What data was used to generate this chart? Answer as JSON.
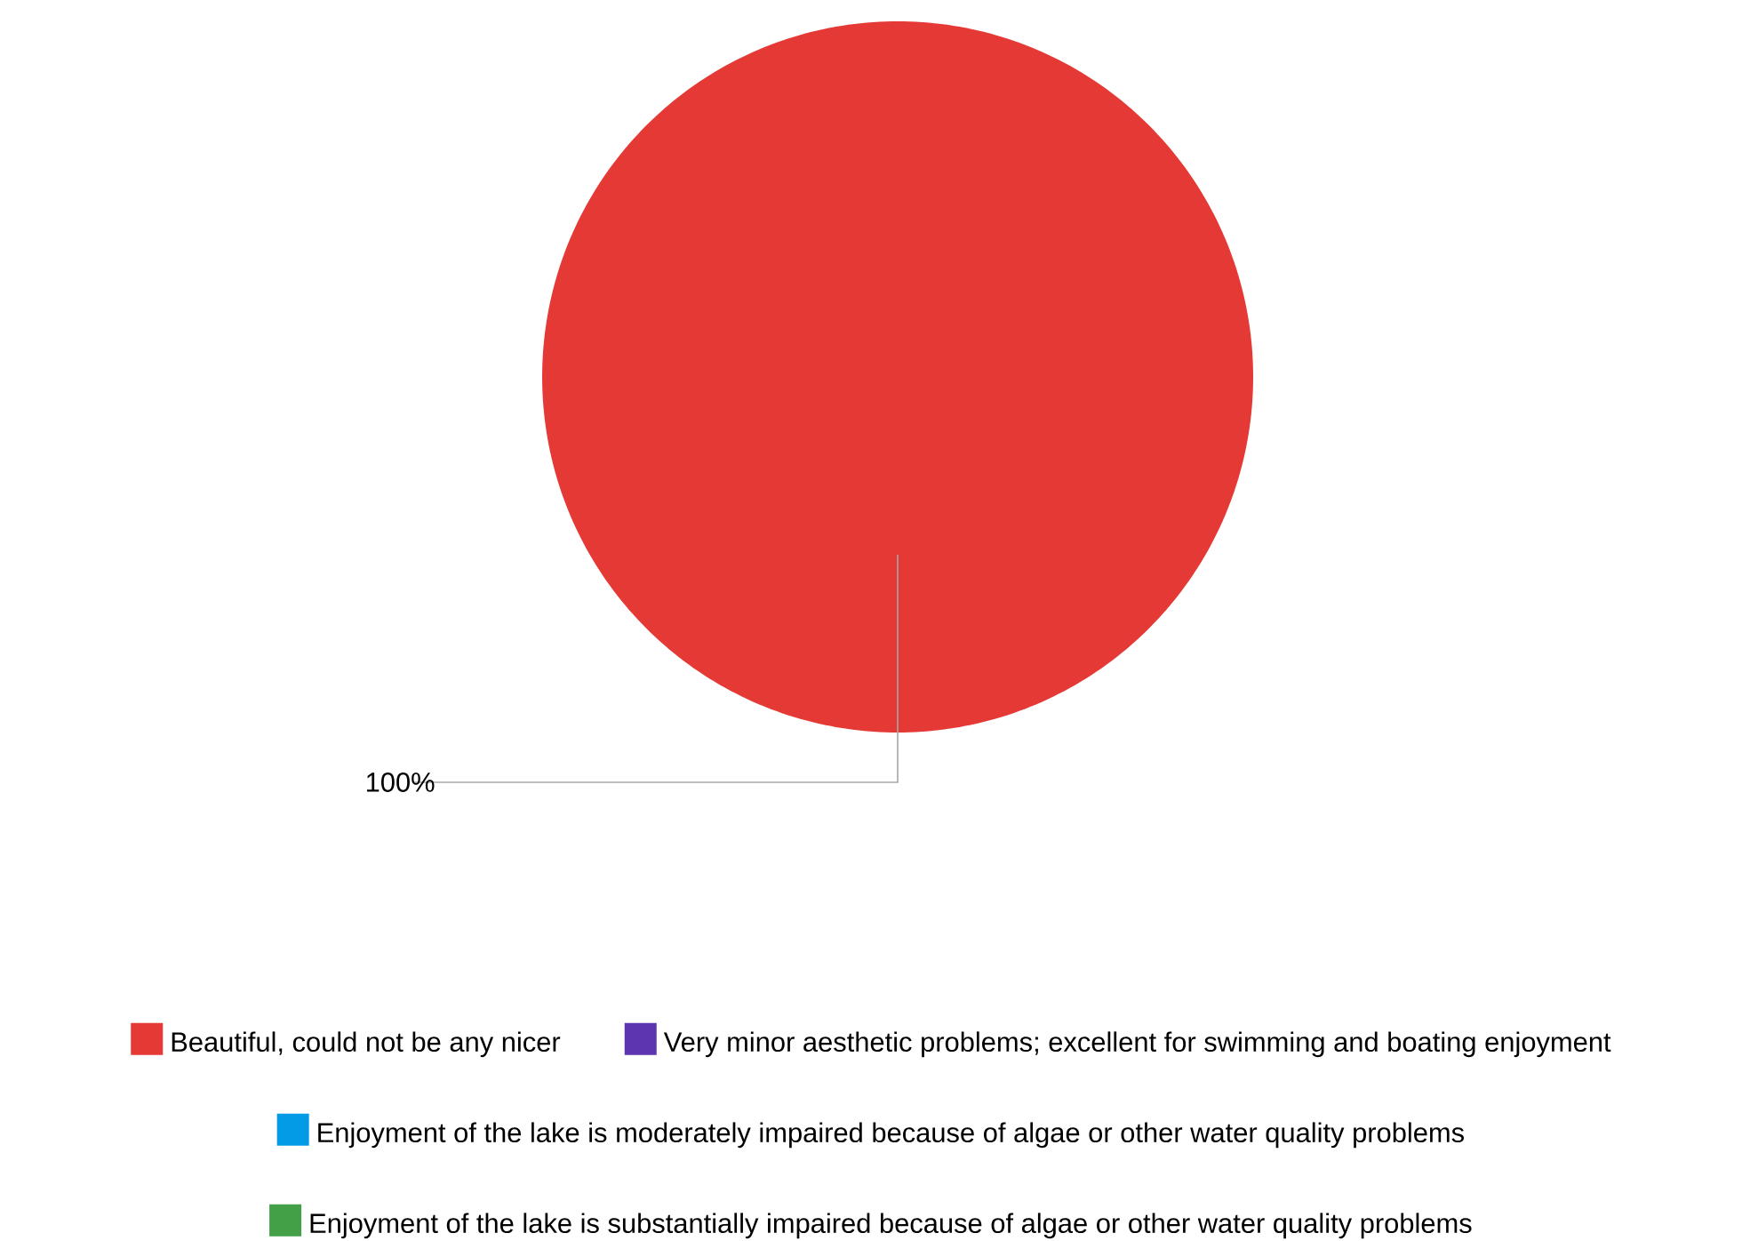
{
  "chart_data": {
    "type": "pie",
    "categories": [
      "Beautiful, could not be any nicer",
      "Very minor aesthetic problems; excellent for swimming and boating enjoyment",
      "Enjoyment of the lake is moderately impaired because of algae or other water quality problems",
      "Enjoyment of the lake is substantially impaired because of algae or other water quality problems"
    ],
    "values": [
      100,
      0,
      0,
      0
    ],
    "colors": [
      "#e53935",
      "#5e35b1",
      "#039be5",
      "#43a047"
    ],
    "value_labels": [
      "100%",
      null,
      null,
      null
    ],
    "legend": "bottom"
  }
}
